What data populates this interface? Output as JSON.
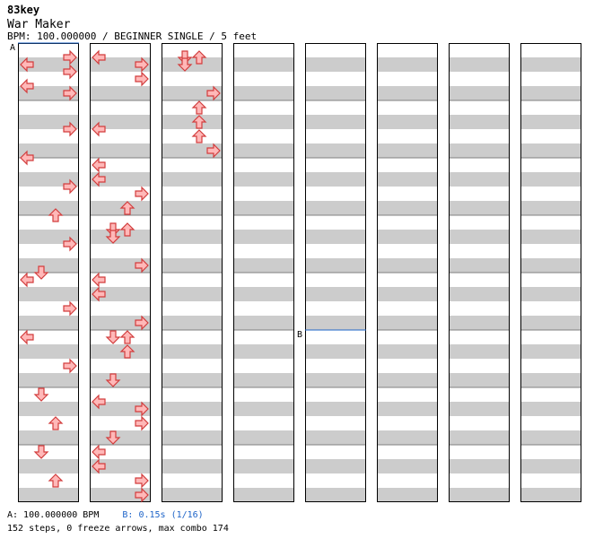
{
  "header": {
    "site": "83key",
    "song_title": "War Maker",
    "info": "BPM: 100.000000 / BEGINNER SINGLE / 5 feet"
  },
  "colors": {
    "stripe": "#cccccc",
    "note_red": "#ffb8b8",
    "note_red_stroke": "#d23c3c",
    "note_blue": "#8ec5f2",
    "note_blue_stroke": "#2f6fc4",
    "marker_line": "#1e64c8",
    "column_border": "#000000"
  },
  "footer": {
    "bpm_label": "A: 100.000000 BPM",
    "stop_label": "B: 0.15s (1/16)",
    "stats": "152 steps, 0 freeze arrows, max combo 174"
  },
  "markers": [
    {
      "label": "A",
      "column": 0,
      "beat": 0
    },
    {
      "label": "B",
      "column": 4,
      "beat": 20
    }
  ],
  "chart_data": {
    "type": "step-chart",
    "beats_per_column": 32,
    "lanes": [
      "left",
      "down",
      "up",
      "right"
    ],
    "notes": [
      {
        "beat": 5.5,
        "lane": "right",
        "color": "red"
      },
      {
        "beat": 7.5,
        "lane": "left",
        "color": "red"
      },
      {
        "beat": 9.5,
        "lane": "right",
        "color": "red"
      },
      {
        "beat": 11.5,
        "lane": "up",
        "color": "red"
      },
      {
        "beat": 13.5,
        "lane": "right",
        "color": "red"
      },
      {
        "beat": 15.5,
        "lane": "down",
        "color": "red"
      },
      {
        "beat": 16,
        "lane": "left",
        "color": "red"
      },
      {
        "beat": 18,
        "lane": "right",
        "color": "red"
      },
      {
        "beat": 20,
        "lane": "left",
        "color": "red"
      },
      {
        "beat": 22,
        "lane": "right",
        "color": "red"
      },
      {
        "beat": 24,
        "lane": "down",
        "color": "red"
      },
      {
        "beat": 26,
        "lane": "up",
        "color": "red"
      },
      {
        "beat": 28,
        "lane": "down",
        "color": "red"
      },
      {
        "beat": 30,
        "lane": "up",
        "color": "red"
      },
      {
        "beat": 32.5,
        "lane": "left",
        "color": "red"
      },
      {
        "beat": 33,
        "lane": "right",
        "color": "red"
      },
      {
        "beat": 34,
        "lane": "right",
        "color": "red"
      },
      {
        "beat": 37.5,
        "lane": "left",
        "color": "red"
      },
      {
        "beat": 40,
        "lane": "left",
        "color": "red"
      },
      {
        "beat": 41,
        "lane": "left",
        "color": "red"
      },
      {
        "beat": 42,
        "lane": "right",
        "color": "red"
      },
      {
        "beat": 43,
        "lane": "up",
        "color": "red"
      },
      {
        "beat": 44.5,
        "lane": "down",
        "color": "red"
      },
      {
        "beat": 44.5,
        "lane": "up",
        "color": "red"
      },
      {
        "beat": 45,
        "lane": "down",
        "color": "red"
      },
      {
        "beat": 47,
        "lane": "right",
        "color": "red"
      },
      {
        "beat": 48,
        "lane": "left",
        "color": "red"
      },
      {
        "beat": 49,
        "lane": "left",
        "color": "red"
      },
      {
        "beat": 51,
        "lane": "right",
        "color": "red"
      },
      {
        "beat": 52,
        "lane": "down",
        "color": "red"
      },
      {
        "beat": 52,
        "lane": "up",
        "color": "red"
      },
      {
        "beat": 53,
        "lane": "up",
        "color": "red"
      },
      {
        "beat": 55,
        "lane": "down",
        "color": "red"
      },
      {
        "beat": 56.5,
        "lane": "left",
        "color": "red"
      },
      {
        "beat": 57,
        "lane": "right",
        "color": "red"
      },
      {
        "beat": 58,
        "lane": "right",
        "color": "red"
      },
      {
        "beat": 59,
        "lane": "down",
        "color": "red"
      },
      {
        "beat": 60,
        "lane": "left",
        "color": "red"
      },
      {
        "beat": 61,
        "lane": "left",
        "color": "red"
      },
      {
        "beat": 62,
        "lane": "right",
        "color": "red"
      },
      {
        "beat": 63,
        "lane": "right",
        "color": "red"
      },
      {
        "beat": 64.5,
        "lane": "down",
        "color": "red"
      },
      {
        "beat": 64.5,
        "lane": "up",
        "color": "red"
      },
      {
        "beat": 65,
        "lane": "down",
        "color": "red"
      },
      {
        "beat": 67,
        "lane": "right",
        "color": "red"
      },
      {
        "beat": 68,
        "lane": "up",
        "color": "red"
      },
      {
        "beat": 69,
        "lane": "up",
        "color": "red"
      },
      {
        "beat": 70,
        "lane": "up",
        "color": "red"
      },
      {
        "beat": 71,
        "lane": "right",
        "color": "red"
      },
      {
        "beat": 0.5,
        "lane": "right",
        "color": "red"
      },
      {
        "beat": 1,
        "lane": "left",
        "color": "red"
      },
      {
        "beat": 1.5,
        "lane": "right",
        "color": "red"
      },
      {
        "beat": 2.5,
        "lane": "left",
        "color": "red"
      },
      {
        "beat": 3,
        "lane": "right",
        "color": "red"
      }
    ]
  }
}
